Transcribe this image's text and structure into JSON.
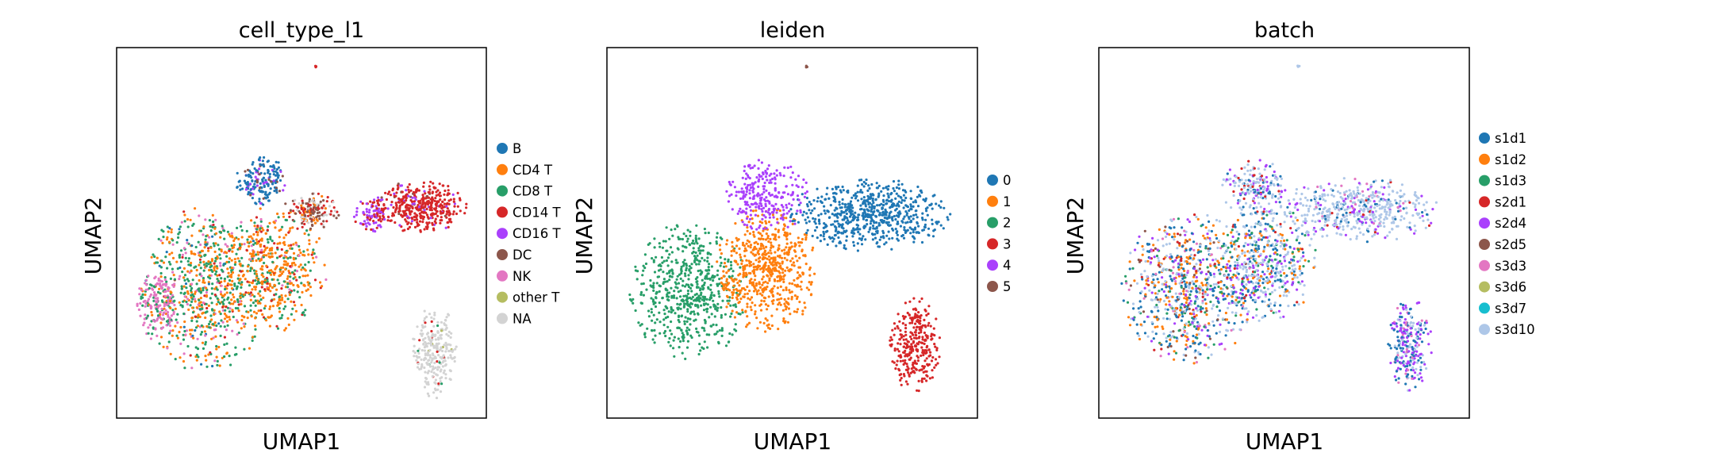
{
  "chart_data": [
    {
      "type": "scatter",
      "title": "cell_type_l1",
      "xlabel": "UMAP1",
      "ylabel": "UMAP2",
      "ticks": "none",
      "grid": false,
      "legend_position": "right",
      "legend": [
        {
          "label": "B",
          "color": "#1f77b4"
        },
        {
          "label": "CD4 T",
          "color": "#ff7f0e"
        },
        {
          "label": "CD8 T",
          "color": "#279e68"
        },
        {
          "label": "CD14 T",
          "color": "#d62728"
        },
        {
          "label": "CD16 T",
          "color": "#aa40fc"
        },
        {
          "label": "DC",
          "color": "#8c564b"
        },
        {
          "label": "NK",
          "color": "#e377c2"
        },
        {
          "label": "other T",
          "color": "#b5bd61"
        },
        {
          "label": "NA",
          "color": "#d3d3d3"
        }
      ],
      "regions": [
        {
          "category": "CD8 T",
          "cx": 0.24,
          "cy": 0.35,
          "rx": 0.17,
          "ry": 0.23,
          "n": 700,
          "mix": [
            [
              "CD8 T",
              0.45
            ],
            [
              "CD4 T",
              0.35
            ],
            [
              "NK",
              0.12
            ],
            [
              "B",
              0.04
            ],
            [
              "CD14 T",
              0.04
            ]
          ]
        },
        {
          "category": "NK",
          "cx": 0.11,
          "cy": 0.31,
          "rx": 0.06,
          "ry": 0.1,
          "n": 180,
          "mix": [
            [
              "NK",
              0.7
            ],
            [
              "CD8 T",
              0.2
            ],
            [
              "CD4 T",
              0.1
            ]
          ]
        },
        {
          "category": "CD4 T",
          "cx": 0.42,
          "cy": 0.4,
          "rx": 0.15,
          "ry": 0.17,
          "n": 500,
          "mix": [
            [
              "CD4 T",
              0.65
            ],
            [
              "CD8 T",
              0.22
            ],
            [
              "CD14 T",
              0.08
            ],
            [
              "NK",
              0.05
            ]
          ]
        },
        {
          "category": "CD14 T",
          "cx": 0.82,
          "cy": 0.57,
          "rx": 0.13,
          "ry": 0.07,
          "n": 420,
          "mix": [
            [
              "CD14 T",
              0.9
            ],
            [
              "CD16 T",
              0.07
            ],
            [
              "DC",
              0.03
            ]
          ]
        },
        {
          "category": "CD16 T",
          "cx": 0.69,
          "cy": 0.55,
          "rx": 0.05,
          "ry": 0.05,
          "n": 90,
          "mix": [
            [
              "CD16 T",
              0.7
            ],
            [
              "CD14 T",
              0.3
            ]
          ]
        },
        {
          "category": "DC",
          "cx": 0.53,
          "cy": 0.56,
          "rx": 0.08,
          "ry": 0.05,
          "n": 160,
          "mix": [
            [
              "DC",
              0.35
            ],
            [
              "NA",
              0.25
            ],
            [
              "CD14 T",
              0.25
            ],
            [
              "CD4 T",
              0.15
            ]
          ]
        },
        {
          "category": "B",
          "cx": 0.39,
          "cy": 0.64,
          "rx": 0.07,
          "ry": 0.07,
          "n": 180,
          "mix": [
            [
              "B",
              0.75
            ],
            [
              "CD16 T",
              0.15
            ],
            [
              "DC",
              0.1
            ]
          ]
        },
        {
          "category": "NA",
          "cx": 0.86,
          "cy": 0.18,
          "rx": 0.06,
          "ry": 0.13,
          "n": 260,
          "mix": [
            [
              "NA",
              0.92
            ],
            [
              "CD14 T",
              0.04
            ],
            [
              "CD8 T",
              0.02
            ],
            [
              "other T",
              0.02
            ]
          ]
        },
        {
          "category": "NA",
          "cx": 0.54,
          "cy": 0.95,
          "rx": 0.004,
          "ry": 0.004,
          "n": 3,
          "mix": [
            [
              "CD14 T",
              1
            ]
          ]
        }
      ]
    },
    {
      "type": "scatter",
      "title": "leiden",
      "xlabel": "UMAP1",
      "ylabel": "UMAP2",
      "ticks": "none",
      "grid": false,
      "legend_position": "right",
      "legend": [
        {
          "label": "0",
          "color": "#1f77b4"
        },
        {
          "label": "1",
          "color": "#ff7f0e"
        },
        {
          "label": "2",
          "color": "#279e68"
        },
        {
          "label": "3",
          "color": "#d62728"
        },
        {
          "label": "4",
          "color": "#aa40fc"
        },
        {
          "label": "5",
          "color": "#8c564b"
        }
      ],
      "regions": [
        {
          "category": "2",
          "cx": 0.22,
          "cy": 0.34,
          "rx": 0.16,
          "ry": 0.19,
          "n": 600,
          "mix": [
            [
              "2",
              1
            ]
          ]
        },
        {
          "category": "1",
          "cx": 0.43,
          "cy": 0.4,
          "rx": 0.14,
          "ry": 0.17,
          "n": 600,
          "mix": [
            [
              "1",
              1
            ]
          ]
        },
        {
          "category": "0",
          "cx": 0.71,
          "cy": 0.55,
          "rx": 0.22,
          "ry": 0.1,
          "n": 650,
          "mix": [
            [
              "0",
              1
            ]
          ]
        },
        {
          "category": "4",
          "cx": 0.43,
          "cy": 0.6,
          "rx": 0.12,
          "ry": 0.1,
          "n": 260,
          "mix": [
            [
              "4",
              1
            ]
          ]
        },
        {
          "category": "3",
          "cx": 0.83,
          "cy": 0.2,
          "rx": 0.07,
          "ry": 0.13,
          "n": 300,
          "mix": [
            [
              "3",
              1
            ]
          ]
        },
        {
          "category": "5",
          "cx": 0.54,
          "cy": 0.95,
          "rx": 0.004,
          "ry": 0.004,
          "n": 3,
          "mix": [
            [
              "5",
              1
            ]
          ]
        }
      ]
    },
    {
      "type": "scatter",
      "title": "batch",
      "xlabel": "UMAP1",
      "ylabel": "UMAP2",
      "ticks": "none",
      "grid": false,
      "legend_position": "right",
      "legend": [
        {
          "label": "s1d1",
          "color": "#1f77b4"
        },
        {
          "label": "s1d2",
          "color": "#ff7f0e"
        },
        {
          "label": "s1d3",
          "color": "#279e68"
        },
        {
          "label": "s2d1",
          "color": "#d62728"
        },
        {
          "label": "s2d4",
          "color": "#aa40fc"
        },
        {
          "label": "s2d5",
          "color": "#8c564b"
        },
        {
          "label": "s3d3",
          "color": "#e377c2"
        },
        {
          "label": "s3d6",
          "color": "#b5bd61"
        },
        {
          "label": "s3d7",
          "color": "#17becf"
        },
        {
          "label": "s3d10",
          "color": "#aec7e8"
        }
      ],
      "regions": [
        {
          "category": "mixed",
          "cx": 0.24,
          "cy": 0.35,
          "rx": 0.18,
          "ry": 0.21,
          "n": 800,
          "mix": [
            [
              "s1d1",
              0.25
            ],
            [
              "s1d2",
              0.2
            ],
            [
              "s1d3",
              0.1
            ],
            [
              "s2d1",
              0.05
            ],
            [
              "s2d4",
              0.1
            ],
            [
              "s3d10",
              0.2
            ],
            [
              "s3d3",
              0.05
            ],
            [
              "s2d5",
              0.05
            ]
          ]
        },
        {
          "category": "mixed",
          "cx": 0.45,
          "cy": 0.42,
          "rx": 0.14,
          "ry": 0.16,
          "n": 500,
          "mix": [
            [
              "s3d10",
              0.35
            ],
            [
              "s1d1",
              0.2
            ],
            [
              "s2d4",
              0.15
            ],
            [
              "s1d2",
              0.15
            ],
            [
              "s2d1",
              0.05
            ],
            [
              "s1d3",
              0.1
            ]
          ]
        },
        {
          "category": "mixed",
          "cx": 0.7,
          "cy": 0.56,
          "rx": 0.22,
          "ry": 0.09,
          "n": 500,
          "mix": [
            [
              "s3d10",
              0.7
            ],
            [
              "s2d4",
              0.12
            ],
            [
              "s1d1",
              0.1
            ],
            [
              "s3d3",
              0.04
            ],
            [
              "s2d1",
              0.04
            ]
          ]
        },
        {
          "category": "mixed",
          "cx": 0.42,
          "cy": 0.62,
          "rx": 0.09,
          "ry": 0.08,
          "n": 200,
          "mix": [
            [
              "s3d10",
              0.55
            ],
            [
              "s2d4",
              0.2
            ],
            [
              "s1d1",
              0.15
            ],
            [
              "s2d1",
              0.1
            ]
          ]
        },
        {
          "category": "mixed",
          "cx": 0.84,
          "cy": 0.2,
          "rx": 0.06,
          "ry": 0.13,
          "n": 260,
          "mix": [
            [
              "s2d4",
              0.35
            ],
            [
              "s1d1",
              0.35
            ],
            [
              "s3d10",
              0.2
            ],
            [
              "s3d3",
              0.1
            ]
          ]
        },
        {
          "category": "mixed",
          "cx": 0.54,
          "cy": 0.95,
          "rx": 0.004,
          "ry": 0.004,
          "n": 3,
          "mix": [
            [
              "s3d10",
              1
            ]
          ]
        }
      ]
    }
  ]
}
